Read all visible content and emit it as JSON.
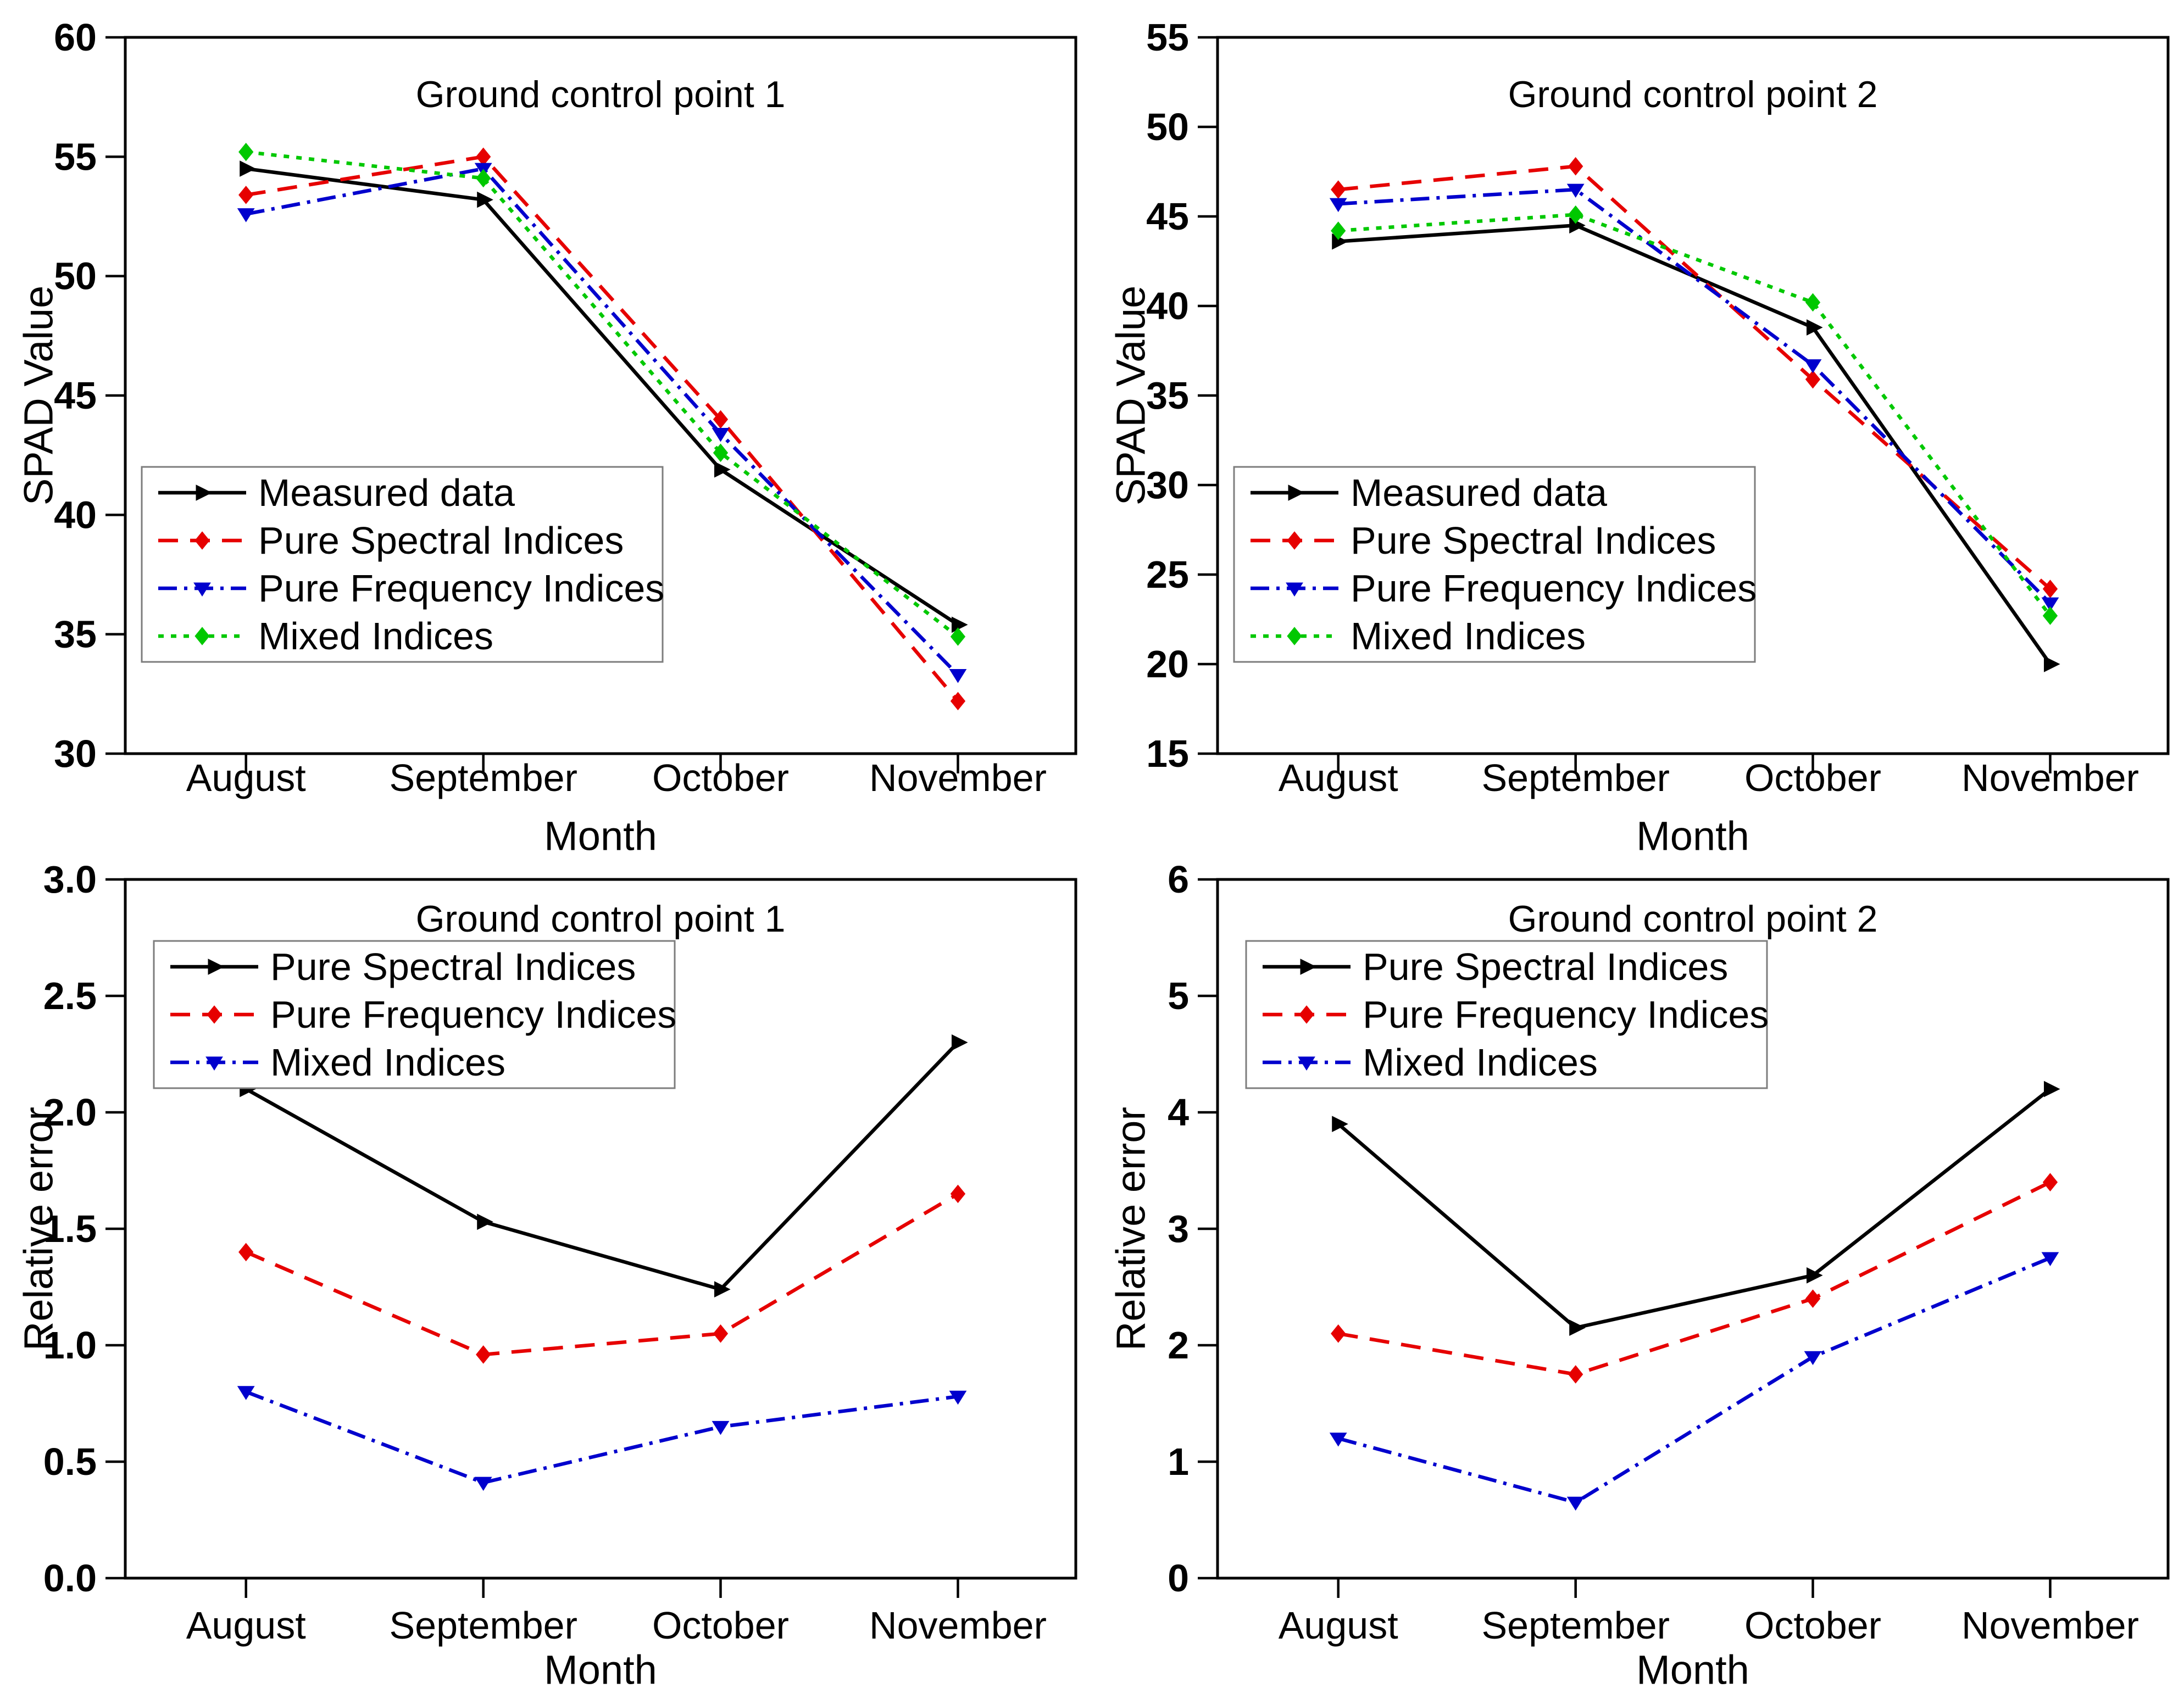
{
  "figure_title": "",
  "colors": {
    "black": "#000000",
    "red": "#e60000",
    "blue": "#0000cd",
    "green": "#00c800",
    "legend_border": "#7d7d7d",
    "axis": "#000000",
    "background": "#ffffff"
  },
  "x_axis": {
    "label": "Month",
    "categories": [
      "August",
      "September",
      "October",
      "November"
    ]
  },
  "chart_data": [
    {
      "id": "spad-gcp1",
      "type": "line",
      "title": "Ground control point 1",
      "xlabel": "Month",
      "ylabel": "SPAD Value",
      "ylim": [
        30,
        60
      ],
      "ystep": 5,
      "ydecimals": 0,
      "grid": false,
      "legend_position": "inside-lower-left",
      "categories": [
        "August",
        "September",
        "October",
        "November"
      ],
      "series": [
        {
          "name": "Measured data",
          "color": "#000000",
          "line": "solid",
          "marker": "triangle-right",
          "values": [
            54.5,
            53.2,
            41.9,
            35.4
          ]
        },
        {
          "name": "Pure Spectral Indices",
          "color": "#e60000",
          "line": "dashed",
          "marker": "diamond",
          "values": [
            53.4,
            55.0,
            44.0,
            32.2
          ]
        },
        {
          "name": "Pure Frequency Indices",
          "color": "#0000cd",
          "line": "dashdot",
          "marker": "triangle-down",
          "values": [
            52.6,
            54.5,
            43.4,
            33.3
          ]
        },
        {
          "name": "Mixed Indices",
          "color": "#00c800",
          "line": "dotted",
          "marker": "diamond",
          "values": [
            55.2,
            54.1,
            42.6,
            34.9
          ]
        }
      ]
    },
    {
      "id": "spad-gcp2",
      "type": "line",
      "title": "Ground control point 2",
      "xlabel": "Month",
      "ylabel": "SPAD Value",
      "ylim": [
        15,
        55
      ],
      "ystep": 5,
      "ydecimals": 0,
      "grid": false,
      "legend_position": "inside-lower-left",
      "categories": [
        "August",
        "September",
        "October",
        "November"
      ],
      "series": [
        {
          "name": "Measured data",
          "color": "#000000",
          "line": "solid",
          "marker": "triangle-right",
          "values": [
            43.6,
            44.5,
            38.8,
            20.0
          ]
        },
        {
          "name": "Pure Spectral Indices",
          "color": "#e60000",
          "line": "dashed",
          "marker": "diamond",
          "values": [
            46.5,
            47.8,
            35.9,
            24.2
          ]
        },
        {
          "name": "Pure Frequency Indices",
          "color": "#0000cd",
          "line": "dashdot",
          "marker": "triangle-down",
          "values": [
            45.7,
            46.5,
            36.7,
            23.4
          ]
        },
        {
          "name": "Mixed Indices",
          "color": "#00c800",
          "line": "dotted",
          "marker": "diamond",
          "values": [
            44.2,
            45.1,
            40.2,
            22.7
          ]
        }
      ]
    },
    {
      "id": "relerr-gcp1",
      "type": "line",
      "title": "Ground control point 1",
      "xlabel": "Month",
      "ylabel": "Relative error",
      "ylim": [
        0.0,
        3.0
      ],
      "ystep": 0.5,
      "ydecimals": 1,
      "grid": false,
      "legend_position": "inside-upper-left",
      "categories": [
        "August",
        "September",
        "October",
        "November"
      ],
      "series": [
        {
          "name": "Pure Spectral Indices",
          "color": "#000000",
          "line": "solid",
          "marker": "triangle-right",
          "values": [
            2.1,
            1.53,
            1.24,
            2.3
          ]
        },
        {
          "name": "Pure Frequency Indices",
          "color": "#e60000",
          "line": "dashed",
          "marker": "diamond",
          "values": [
            1.4,
            0.96,
            1.05,
            1.65
          ]
        },
        {
          "name": "Mixed Indices",
          "color": "#0000cd",
          "line": "dashdot",
          "marker": "triangle-down",
          "values": [
            0.8,
            0.41,
            0.65,
            0.78
          ]
        }
      ]
    },
    {
      "id": "relerr-gcp2",
      "type": "line",
      "title": "Ground control point 2",
      "xlabel": "Month",
      "ylabel": "Relative error",
      "ylim": [
        0,
        6
      ],
      "ystep": 1,
      "ydecimals": 0,
      "grid": false,
      "legend_position": "inside-upper-left",
      "categories": [
        "August",
        "September",
        "October",
        "November"
      ],
      "series": [
        {
          "name": "Pure Spectral Indices",
          "color": "#000000",
          "line": "solid",
          "marker": "triangle-right",
          "values": [
            3.9,
            2.15,
            2.6,
            4.2
          ]
        },
        {
          "name": "Pure Frequency Indices",
          "color": "#e60000",
          "line": "dashed",
          "marker": "diamond",
          "values": [
            2.1,
            1.75,
            2.4,
            3.4
          ]
        },
        {
          "name": "Mixed Indices",
          "color": "#0000cd",
          "line": "dashdot",
          "marker": "triangle-down",
          "values": [
            1.2,
            0.65,
            1.9,
            2.75
          ]
        }
      ]
    }
  ]
}
